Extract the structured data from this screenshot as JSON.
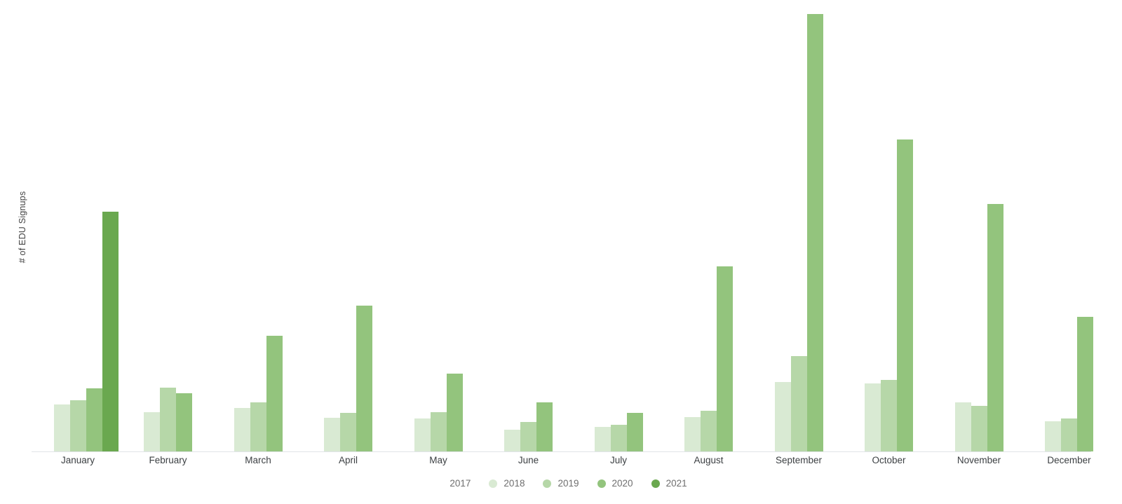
{
  "chart": {
    "y_axis_title": "# of EDU Signups"
  },
  "chart_data": {
    "type": "bar",
    "title": "",
    "xlabel": "",
    "ylabel": "# of EDU Signups",
    "categories": [
      "January",
      "February",
      "March",
      "April",
      "May",
      "June",
      "July",
      "August",
      "September",
      "October",
      "November",
      "December"
    ],
    "series": [
      {
        "name": "2017",
        "color": "#ffffff",
        "values": [
          0,
          0,
          0,
          0,
          0,
          0,
          0,
          0,
          0,
          0,
          0,
          0
        ]
      },
      {
        "name": "2018",
        "color": "#d9ead3",
        "values": [
          67,
          56,
          62,
          48,
          47,
          31,
          35,
          49,
          99,
          97,
          70,
          43
        ]
      },
      {
        "name": "2019",
        "color": "#b6d7a8",
        "values": [
          73,
          91,
          70,
          55,
          56,
          42,
          38,
          58,
          136,
          102,
          65,
          47
        ]
      },
      {
        "name": "2020",
        "color": "#93c47d",
        "values": [
          90,
          83,
          165,
          208,
          111,
          70,
          55,
          264,
          624,
          445,
          353,
          192
        ]
      },
      {
        "name": "2021",
        "color": "#6aa84f",
        "values": [
          342,
          0,
          0,
          0,
          0,
          0,
          0,
          0,
          0,
          0,
          0,
          0
        ]
      }
    ],
    "ylim": [
      0,
      624
    ],
    "note": "No numeric y-axis shown in chart; values are relative estimates proportional to bar heights (1 unit = 1px).",
    "grid": false,
    "legend_position": "bottom",
    "axis_line_color": "#e1e4e8"
  }
}
